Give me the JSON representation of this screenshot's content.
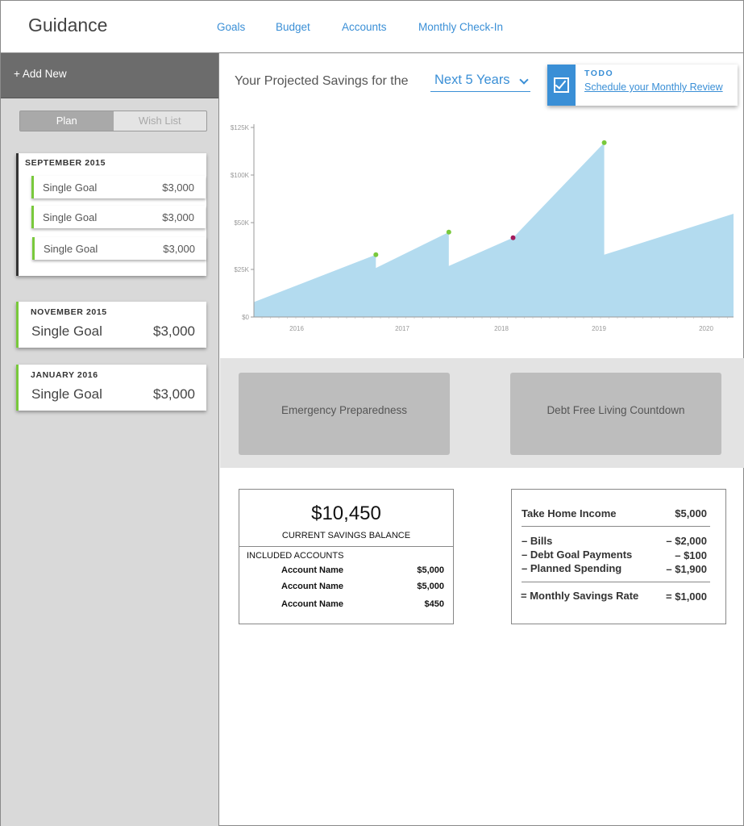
{
  "app": {
    "brand": "Guidance"
  },
  "nav": [
    "Goals",
    "Budget",
    "Accounts",
    "Monthly Check-In"
  ],
  "sidebar": {
    "add_new": "+ Add New",
    "toggle": {
      "plan": "Plan",
      "wishlist": "Wish List",
      "active": "plan"
    },
    "groups": [
      {
        "month": "SEPTEMBER 2015",
        "goals": [
          {
            "name": "Single Goal",
            "amount": "$3,000"
          },
          {
            "name": "Single Goal",
            "amount": "$3,000"
          },
          {
            "name": "Single Goal",
            "amount": "$3,000"
          }
        ]
      },
      {
        "month": "NOVEMBER 2015",
        "goals": [
          {
            "name": "Single Goal",
            "amount": "$3,000"
          }
        ]
      },
      {
        "month": "JANUARY 2016",
        "goals": [
          {
            "name": "Single Goal",
            "amount": "$3,000"
          }
        ]
      }
    ]
  },
  "projection": {
    "label": "Your Projected Savings for the",
    "range": "Next 5 Years"
  },
  "todo": {
    "label": "TODO",
    "link": "Schedule your Monthly Review"
  },
  "chart_data": {
    "type": "area",
    "title": "",
    "xlabel": "",
    "ylabel": "",
    "x_ticks": [
      "2016",
      "2017",
      "2018",
      "2019",
      "2020"
    ],
    "y_ticks": [
      "$0",
      "$25K",
      "$50K",
      "$100K",
      "$125K"
    ],
    "ylim": [
      0,
      125000
    ],
    "xlim": [
      2015.6,
      2020.3
    ],
    "grid": false,
    "fill_color": "#b3dbef",
    "series": [
      {
        "values": [
          {
            "x": 2015.6,
            "y": 8000
          },
          {
            "x": 2016.75,
            "y": 33000
          },
          {
            "x": 2016.75,
            "y": 26000
          },
          {
            "x": 2017.47,
            "y": 45000
          },
          {
            "x": 2017.47,
            "y": 27000
          },
          {
            "x": 2018.12,
            "y": 42000
          },
          {
            "x": 2019.05,
            "y": 113000
          },
          {
            "x": 2019.05,
            "y": 33000
          },
          {
            "x": 2020.3,
            "y": 57000
          }
        ]
      }
    ],
    "markers": [
      {
        "x": 2016.75,
        "y": 33000,
        "color": "#79c93c"
      },
      {
        "x": 2017.47,
        "y": 45000,
        "color": "#79c93c"
      },
      {
        "x": 2018.12,
        "y": 42000,
        "color": "#a3195b"
      },
      {
        "x": 2019.05,
        "y": 113000,
        "color": "#79c93c"
      }
    ]
  },
  "tiles": [
    "Emergency Preparedness",
    "Debt Free Living Countdown"
  ],
  "savings": {
    "balance": "$10,450",
    "balance_label": "CURRENT SAVINGS BALANCE",
    "included_label": "INCLUDED ACCOUNTS",
    "accounts": [
      {
        "name": "Account Name",
        "value": "$5,000"
      },
      {
        "name": "Account Name",
        "value": "$5,000"
      },
      {
        "name": "Account Name",
        "value": "$450"
      }
    ]
  },
  "rate": {
    "income_label": "Take Home Income",
    "income": "$5,000",
    "items": [
      {
        "label": "– Bills",
        "value": "– $2,000"
      },
      {
        "label": "– Debt Goal Payments",
        "value": "– $100"
      },
      {
        "label": "– Planned Spending",
        "value": "– $1,900"
      }
    ],
    "total_label": "= Monthly Savings Rate",
    "total": "= $1,000"
  }
}
